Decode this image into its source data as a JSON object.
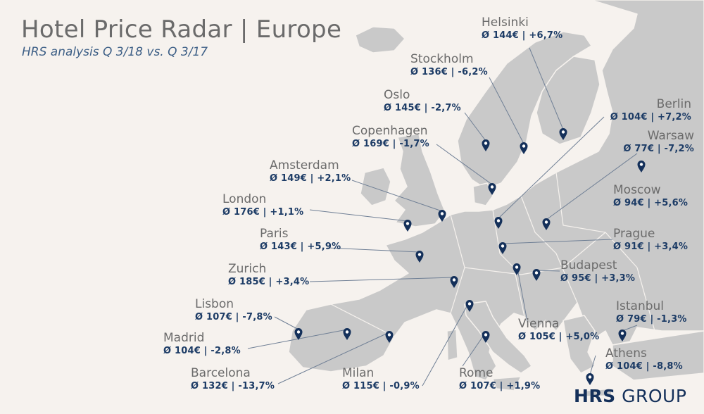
{
  "header": {
    "title": "Hotel Price Radar | Europe",
    "subtitle": "HRS analysis Q 3/18 vs. Q 3/17"
  },
  "cities": [
    {
      "id": "helsinki",
      "name": "Helsinki",
      "stat": "Ø 144€ | +6,7%"
    },
    {
      "id": "stockholm",
      "name": "Stockholm",
      "stat": "Ø 136€ | -6,2%"
    },
    {
      "id": "oslo",
      "name": "Oslo",
      "stat": "Ø 145€ | -2,7%"
    },
    {
      "id": "berlin",
      "name": "Berlin",
      "stat": "Ø 104€ | +7,2%"
    },
    {
      "id": "copenhagen",
      "name": "Copenhagen",
      "stat": "Ø 169€ | -1,7%"
    },
    {
      "id": "warsaw",
      "name": "Warsaw",
      "stat": "Ø 77€ | -7,2%"
    },
    {
      "id": "amsterdam",
      "name": "Amsterdam",
      "stat": "Ø 149€ | +2,1%"
    },
    {
      "id": "moscow",
      "name": "Moscow",
      "stat": "Ø 94€ | +5,6%"
    },
    {
      "id": "london",
      "name": "London",
      "stat": "Ø 176€ | +1,1%"
    },
    {
      "id": "paris",
      "name": "Paris",
      "stat": "Ø 143€ | +5,9%"
    },
    {
      "id": "prague",
      "name": "Prague",
      "stat": "Ø 91€ | +3,4%"
    },
    {
      "id": "zurich",
      "name": "Zurich",
      "stat": "Ø 185€ | +3,4%"
    },
    {
      "id": "budapest",
      "name": "Budapest",
      "stat": "Ø 95€ | +3,3%"
    },
    {
      "id": "lisbon",
      "name": "Lisbon",
      "stat": "Ø 107€ | -7,8%"
    },
    {
      "id": "istanbul",
      "name": "Istanbul",
      "stat": "Ø 79€ | -1,3%"
    },
    {
      "id": "vienna",
      "name": "Vienna",
      "stat": "Ø 105€ | +5,0%"
    },
    {
      "id": "madrid",
      "name": "Madrid",
      "stat": "Ø 104€ | -2,8%"
    },
    {
      "id": "athens",
      "name": "Athens",
      "stat": "Ø 104€ | -8,8%"
    },
    {
      "id": "barcelona",
      "name": "Barcelona",
      "stat": "Ø 132€ | -13,7%"
    },
    {
      "id": "milan",
      "name": "Milan",
      "stat": "Ø 115€ | -0,9%"
    },
    {
      "id": "rome",
      "name": "Rome",
      "stat": "Ø 107€ | +1,9%"
    }
  ],
  "logo": {
    "brand": "HRS",
    "suffix": " GROUP"
  },
  "colors": {
    "land": "#c9c9c9",
    "background": "#f6f2ee",
    "pin": "#14305a",
    "leader": "#6f7f95"
  }
}
